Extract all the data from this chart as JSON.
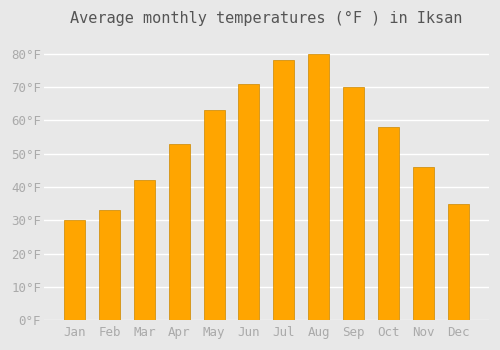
{
  "title": "Average monthly temperatures (°F ) in Iksan",
  "months": [
    "Jan",
    "Feb",
    "Mar",
    "Apr",
    "May",
    "Jun",
    "Jul",
    "Aug",
    "Sep",
    "Oct",
    "Nov",
    "Dec"
  ],
  "values": [
    30,
    33,
    42,
    53,
    63,
    71,
    78,
    80,
    70,
    58,
    46,
    35
  ],
  "bar_color": "#FFA500",
  "bar_edge_color": "#CC8800",
  "background_color": "#E8E8E8",
  "grid_color": "#FFFFFF",
  "tick_color": "#AAAAAA",
  "text_color": "#555555",
  "ylim": [
    0,
    85
  ],
  "yticks": [
    0,
    10,
    20,
    30,
    40,
    50,
    60,
    70,
    80
  ],
  "ylabel_suffix": "°F",
  "title_fontsize": 11,
  "tick_fontsize": 9
}
